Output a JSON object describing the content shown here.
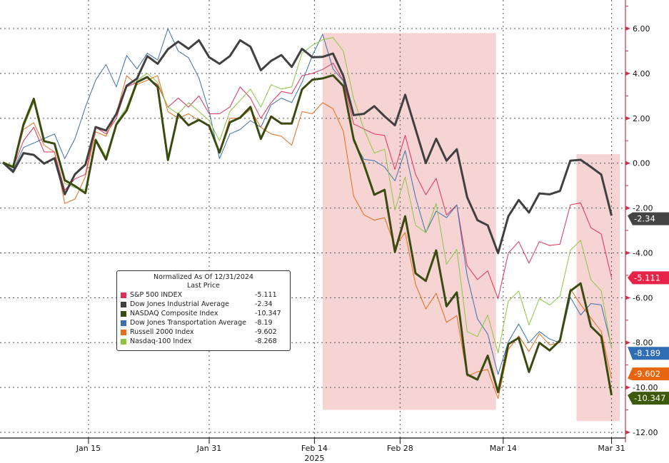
{
  "chart_data": {
    "type": "line",
    "title": "",
    "x_ticks": [
      {
        "label": "Jan 15",
        "at": 8.3
      },
      {
        "label": "Jan 31",
        "at": 20
      },
      {
        "label": "Feb 14",
        "at": 30.2,
        "sub": "2025"
      },
      {
        "label": "Feb 28",
        "at": 38.5
      },
      {
        "label": "Mar 14",
        "at": 48.5
      },
      {
        "label": "Mar 31",
        "at": 59
      }
    ],
    "y_ticks": [
      "6.00",
      "4.00",
      "2.00",
      "0.00",
      "-2.00",
      "-4.00",
      "-6.00",
      "-8.00",
      "-10.00",
      "-12.00"
    ],
    "ylim": [
      -12.5,
      7
    ],
    "grid": true,
    "legend_position": "bottom-left",
    "legend": {
      "title": "Normalized As Of 12/31/2024",
      "subtitle": "Last Price"
    },
    "shaded_regions": [
      {
        "x": [
          31,
          47.8
        ],
        "y": [
          -11,
          5.8
        ],
        "color": "#f4cccc"
      },
      {
        "x": [
          55.6,
          59.8
        ],
        "y": [
          -11.5,
          0.4
        ],
        "color": "#f4cccc"
      }
    ],
    "series": [
      {
        "name": "S&P 500 INDEX",
        "last": "-5.111",
        "tag": "-5.111",
        "color": "#e0305a",
        "tag_color": "#e8234a",
        "width": 1,
        "values": [
          0,
          -0.2,
          1.0,
          1.6,
          0.5,
          0.5,
          -1.2,
          -0.7,
          -0.5,
          1.6,
          1.3,
          2.0,
          3.4,
          3.6,
          3.8,
          3.5,
          2.5,
          2.9,
          2.5,
          3.0,
          2.2,
          2.2,
          2.5,
          3.4,
          2.9,
          2.0,
          2.7,
          3.2,
          3.1,
          3.9,
          4.0,
          4.18,
          4.46,
          3.67,
          1.75,
          1.52,
          1.3,
          1.24,
          -0.28,
          1.24,
          -0.5,
          -1.41,
          -0.68,
          -2.31,
          -1.86,
          -4.57,
          -5.19,
          -4.8,
          -6.04,
          -4.01,
          -3.5,
          -4.46,
          -3.5,
          -3.67,
          -3.61,
          -1.86,
          -1.77,
          -2.88,
          -3.16,
          -5.111
        ]
      },
      {
        "name": "Dow Jones Industrial Average",
        "last": "-2.34",
        "tag": "-2.34",
        "color": "#404040",
        "tag_color": "#444444",
        "width": 3,
        "values": [
          0.03,
          -0.39,
          0.45,
          0.37,
          -0.02,
          0.22,
          -1.39,
          -0.49,
          -0.07,
          1.61,
          1.45,
          2.19,
          3.45,
          3.77,
          4.77,
          4.43,
          5.08,
          5.42,
          5.1,
          5.48,
          4.72,
          4.43,
          4.77,
          5.48,
          5.19,
          4.14,
          4.56,
          4.82,
          4.29,
          5.1,
          4.72,
          4.74,
          4.89,
          3.89,
          2.14,
          2.2,
          2.54,
          2.09,
          1.69,
          3.05,
          1.52,
          0,
          1.09,
          0.11,
          0.62,
          -1.52,
          -2.54,
          -2.77,
          -4.01,
          -2.37,
          -1.64,
          -2.2,
          -1.35,
          -1.39,
          -1.24,
          0.11,
          0.15,
          -0.17,
          -0.51,
          -2.34
        ]
      },
      {
        "name": "NASDAQ Composite Index",
        "last": "-10.347",
        "tag": "-10.347",
        "color": "#3a4a10",
        "tag_color": "#3d5a0a",
        "width": 3,
        "values": [
          0.03,
          -0.18,
          1.72,
          2.87,
          0.98,
          0.87,
          -0.76,
          -1.02,
          -1.34,
          1.03,
          0.16,
          1.72,
          2.35,
          3.61,
          3.84,
          3.4,
          0.14,
          2.19,
          1.69,
          1.93,
          1.66,
          0.47,
          1.82,
          2.03,
          2.51,
          1.08,
          2.08,
          1.77,
          1.77,
          3.29,
          3.72,
          3.78,
          3.92,
          3.44,
          1.07,
          -0.06,
          -1.41,
          -1.19,
          -3.95,
          -2.37,
          -4.91,
          -5.25,
          -3.89,
          -6.38,
          -5.76,
          -9.42,
          -9.65,
          -8.58,
          -10.21,
          -8.07,
          -7.79,
          -9.31,
          -8.01,
          -8.35,
          -7.9,
          -5.7,
          -5.36,
          -7.28,
          -7.73,
          -10.347
        ]
      },
      {
        "name": "Dow Jones Transportation Average",
        "last": "-8.19",
        "tag": "-8.189",
        "color": "#3a6fb0",
        "tag_color": "#2f6db5",
        "width": 1,
        "values": [
          0,
          -0.3,
          0.7,
          0.9,
          1.1,
          1.3,
          0.2,
          1.1,
          2.5,
          3.7,
          4.4,
          3.4,
          4.8,
          4.2,
          4.9,
          4.6,
          6.0,
          5.0,
          4.7,
          3.8,
          2.3,
          0.2,
          1.3,
          1.5,
          1.9,
          1.6,
          2.6,
          2.9,
          2.7,
          3.6,
          4.8,
          5.75,
          4.2,
          3.67,
          0.96,
          0.17,
          0.11,
          -0.17,
          -0.79,
          0.56,
          -1.52,
          -3.1,
          -2.14,
          -2.43,
          -1.86,
          -5.02,
          -6.94,
          -7.62,
          -9.42,
          -7.96,
          -7.17,
          -8.01,
          -7.51,
          -7.84,
          -8.01,
          -5.98,
          -6.77,
          -6.26,
          -6.32,
          -8.19
        ]
      },
      {
        "name": "Russell 2000 Index",
        "last": "-9.602",
        "tag": "-9.602",
        "color": "#e86a1a",
        "tag_color": "#e8650f",
        "width": 1,
        "values": [
          0,
          -0.2,
          1.5,
          1.8,
          0.8,
          0.5,
          -1.8,
          -1.6,
          -0.6,
          1.4,
          1.2,
          2.2,
          3.9,
          3.5,
          3.7,
          3.9,
          2.3,
          2.0,
          2.2,
          1.9,
          1.7,
          0.5,
          2.0,
          2.0,
          2.4,
          1.6,
          1.3,
          1.2,
          0.8,
          2.3,
          2.2,
          2.7,
          2.43,
          1.43,
          -1.47,
          -2.31,
          -2.54,
          -2.43,
          -3.7,
          -3.1,
          -5.4,
          -6.5,
          -5.8,
          -7.1,
          -6.8,
          -9.5,
          -9.3,
          -9.2,
          -10.5,
          -8.3,
          -7.7,
          -8.4,
          -7.6,
          -8.1,
          -8.0,
          -5.6,
          -6.3,
          -6.9,
          -7.5,
          -9.602
        ]
      },
      {
        "name": "Nasdaq-100 Index",
        "last": "-8.268",
        "color": "#8cc63f",
        "width": 1,
        "values": [
          0,
          -0.1,
          1.6,
          2.7,
          1.0,
          0.9,
          -0.9,
          -1.1,
          -1.2,
          1.1,
          0.3,
          1.8,
          2.5,
          3.7,
          4.0,
          3.6,
          2.5,
          2.2,
          2.7,
          2.3,
          1.9,
          1.0,
          2.3,
          2.8,
          3.3,
          2.5,
          3.5,
          3.3,
          3.4,
          4.9,
          5.25,
          5.5,
          5.6,
          5.0,
          2.88,
          1.5,
          0.45,
          0.62,
          -2.09,
          -0.62,
          -2.77,
          -3.1,
          -1.8,
          -4.51,
          -3.84,
          -7.51,
          -7.73,
          -6.77,
          -8.46,
          -6.15,
          -5.7,
          -7.22,
          -6.04,
          -6.32,
          -5.93,
          -3.89,
          -3.44,
          -5.19,
          -5.7,
          -8.268
        ]
      }
    ]
  }
}
